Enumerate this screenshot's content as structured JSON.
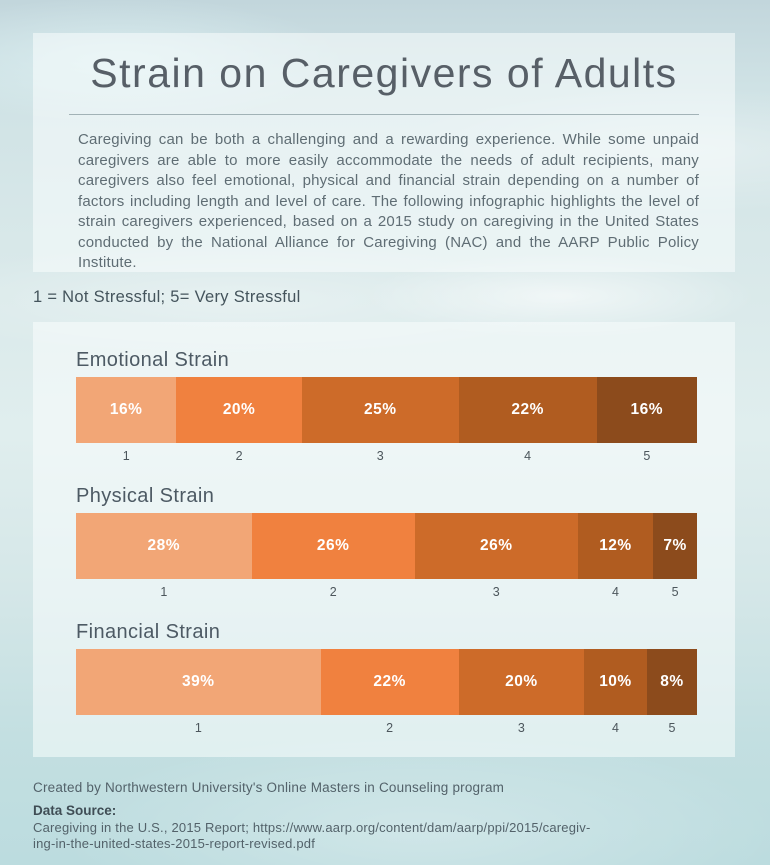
{
  "header": {
    "title": "Strain on Caregivers of Adults",
    "description": "Caregiving can be both a challenging and a rewarding experience. While some unpaid caregivers are able to more easily accommodate the needs of adult recipients, many caregivers also feel emotional, physical and financial strain depending on a number of factors including length and level of care. The following infographic highlights the level of strain caregivers experienced, based on a 2015 study on caregiving in the United States conducted by the National Alliance for Caregiving (NAC) and the AARP Public Policy Institute."
  },
  "legend": "1 = Not Stressful; 5= Very Stressful",
  "chart_data": {
    "type": "bar",
    "subtype": "horizontal-stacked-percentage",
    "title": "Strain on Caregivers of Adults",
    "scale_note": "1 = Not Stressful; 5= Very Stressful",
    "categories": [
      "1",
      "2",
      "3",
      "4",
      "5"
    ],
    "series": [
      {
        "name": "Emotional Strain",
        "values": [
          16,
          20,
          25,
          22,
          16
        ]
      },
      {
        "name": "Physical Strain",
        "values": [
          28,
          26,
          26,
          12,
          7
        ]
      },
      {
        "name": "Financial Strain",
        "values": [
          39,
          22,
          20,
          10,
          8
        ]
      }
    ],
    "value_suffix": "%",
    "segment_colors": [
      "#F2A676",
      "#F0813F",
      "#CD6B29",
      "#B05C20",
      "#8C4B1C"
    ],
    "legend_position": "top-left",
    "grid": false
  },
  "footer": {
    "credit": "Created by Northwestern University's Online Masters in Counseling program",
    "data_source_label": "Data Source:",
    "source_line1": "Caregiving in the U.S., 2015 Report; https://www.aarp.org/content/dam/aarp/ppi/2015/caregiv-",
    "source_line2": "ing-in-the-united-states-2015-report-revised.pdf"
  }
}
